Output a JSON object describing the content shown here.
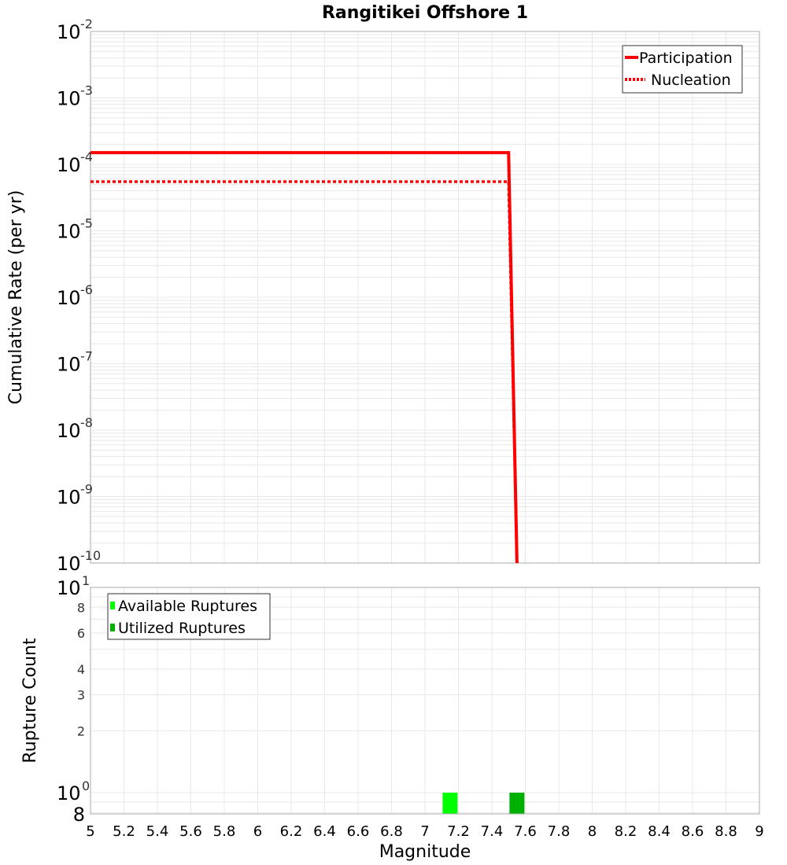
{
  "chart_data": [
    {
      "type": "line",
      "title": "Rangitikei Offshore 1",
      "xlabel": "Magnitude",
      "ylabel": "Cumulative Rate (per yr)",
      "yscale": "log",
      "ylim": [
        1e-10,
        0.01
      ],
      "xlim": [
        5,
        9
      ],
      "y_tick_labels": [
        "10^-2",
        "10^-3",
        "10^-4",
        "10^-5",
        "10^-6",
        "10^-7",
        "10^-8",
        "10^-9",
        "10^-10"
      ],
      "grid": true,
      "legend_position": "upper right",
      "series": [
        {
          "name": "Participation",
          "style": "solid",
          "color": "#ff0000",
          "x": [
            5.0,
            7.5,
            7.55
          ],
          "y": [
            0.00015,
            0.00015,
            1e-10
          ]
        },
        {
          "name": "Nucleation",
          "style": "dotted",
          "color": "#ff0000",
          "x": [
            5.0,
            7.5,
            7.55
          ],
          "y": [
            5.5e-05,
            5.5e-05,
            1e-10
          ]
        }
      ]
    },
    {
      "type": "bar",
      "ylabel": "Rupture Count",
      "xlabel": "Magnitude",
      "yscale": "log",
      "ylim": [
        0.8,
        10
      ],
      "xlim": [
        5,
        9
      ],
      "x_ticks": [
        5,
        5.2,
        5.4,
        5.6,
        5.8,
        6,
        6.2,
        6.4,
        6.6,
        6.8,
        7,
        7.2,
        7.4,
        7.6,
        7.8,
        8,
        8.2,
        8.4,
        8.6,
        8.8,
        9
      ],
      "y_tick_labels": [
        "10^1",
        "8",
        "6",
        "4",
        "3",
        "2",
        "10^0",
        "8"
      ],
      "grid": true,
      "legend_position": "upper left",
      "series": [
        {
          "name": "Available Ruptures",
          "color": "#00ff00",
          "x": [
            7.15
          ],
          "values": [
            1
          ]
        },
        {
          "name": "Utilized Ruptures",
          "color": "#00b000",
          "x": [
            7.55
          ],
          "values": [
            1
          ]
        }
      ]
    }
  ],
  "labels": {
    "title": "Rangitikei Offshore 1",
    "top_ylabel": "Cumulative Rate (per yr)",
    "bottom_ylabel": "Rupture Count",
    "xlabel": "Magnitude",
    "legend_top": [
      "Participation",
      "Nucleation"
    ],
    "legend_bottom": [
      "Available Ruptures",
      "Utilized Ruptures"
    ],
    "top_y_exponents": [
      "-2",
      "-3",
      "-4",
      "-5",
      "-6",
      "-7",
      "-8",
      "-9",
      "-10"
    ],
    "bottom_minor": [
      "8",
      "6",
      "4",
      "3",
      "2"
    ],
    "bottom_bottom": "8",
    "x_ticks": [
      "5",
      "5.2",
      "5.4",
      "5.6",
      "5.8",
      "6",
      "6.2",
      "6.4",
      "6.6",
      "6.8",
      "7",
      "7.2",
      "7.4",
      "7.6",
      "7.8",
      "8",
      "8.2",
      "8.4",
      "8.6",
      "8.8",
      "9"
    ]
  }
}
